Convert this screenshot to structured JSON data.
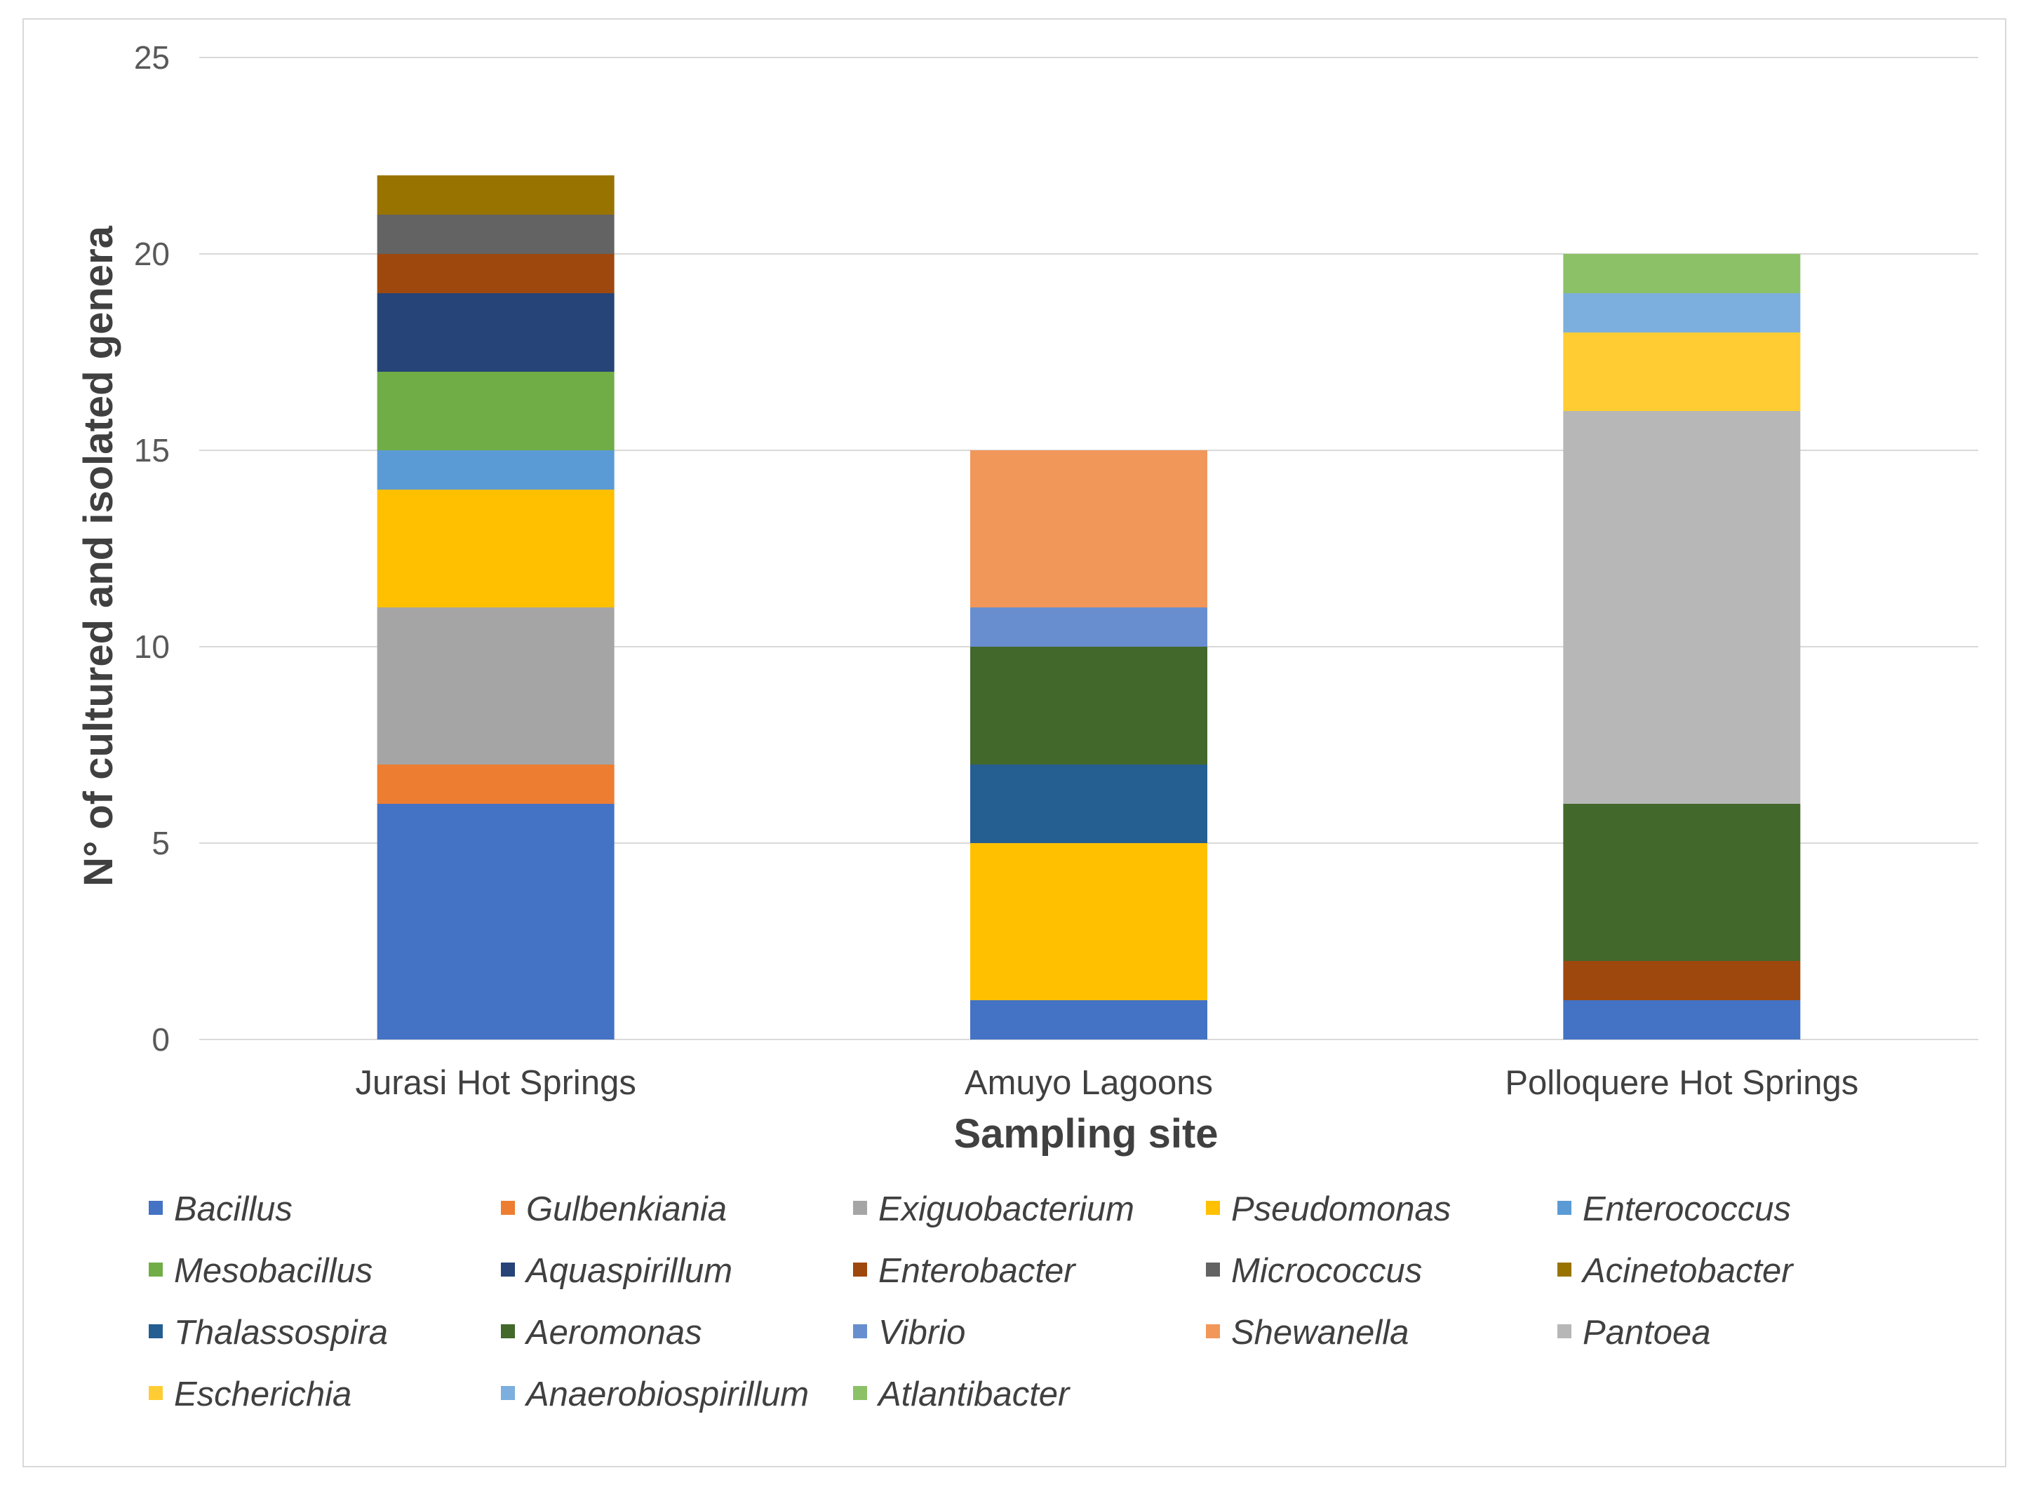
{
  "chart_data": {
    "type": "bar",
    "stacked": true,
    "title": "",
    "xlabel": "Sampling site",
    "ylabel": "N° of cultured and isolated genera",
    "ylim": [
      0,
      25
    ],
    "yticks": [
      0,
      5,
      10,
      15,
      20,
      25
    ],
    "grid": true,
    "legend_position": "bottom",
    "categories": [
      "Jurasi Hot Springs",
      "Amuyo Lagoons",
      "Polloquere Hot Springs"
    ],
    "series": [
      {
        "name": "Bacillus",
        "color": "#4472C4",
        "values": [
          6,
          1,
          1
        ]
      },
      {
        "name": "Gulbenkiania",
        "color": "#ED7D31",
        "values": [
          1,
          0,
          0
        ]
      },
      {
        "name": "Exiguobacterium",
        "color": "#A5A5A5",
        "values": [
          4,
          0,
          0
        ]
      },
      {
        "name": "Pseudomonas",
        "color": "#FFC000",
        "values": [
          3,
          4,
          0
        ]
      },
      {
        "name": "Enterococcus",
        "color": "#5B9BD5",
        "values": [
          1,
          0,
          0
        ]
      },
      {
        "name": "Mesobacillus",
        "color": "#70AD47",
        "values": [
          2,
          0,
          0
        ]
      },
      {
        "name": "Aquaspirillum",
        "color": "#264478",
        "values": [
          2,
          0,
          0
        ]
      },
      {
        "name": "Enterobacter",
        "color": "#9E480E",
        "values": [
          1,
          0,
          1
        ]
      },
      {
        "name": "Micrococcus",
        "color": "#636363",
        "values": [
          1,
          0,
          0
        ]
      },
      {
        "name": "Acinetobacter",
        "color": "#997300",
        "values": [
          1,
          0,
          0
        ]
      },
      {
        "name": "Thalassospira",
        "color": "#255E91",
        "values": [
          0,
          2,
          0
        ]
      },
      {
        "name": "Aeromonas",
        "color": "#43682B",
        "values": [
          0,
          3,
          4
        ]
      },
      {
        "name": "Vibrio",
        "color": "#698ED0",
        "values": [
          0,
          1,
          0
        ]
      },
      {
        "name": "Shewanella",
        "color": "#F1975A",
        "values": [
          0,
          4,
          0
        ]
      },
      {
        "name": "Pantoea",
        "color": "#B7B7B7",
        "values": [
          0,
          0,
          10
        ]
      },
      {
        "name": "Escherichia",
        "color": "#FFCD33",
        "values": [
          0,
          0,
          2
        ]
      },
      {
        "name": "Anaerobiospirillum",
        "color": "#7CAFDD",
        "values": [
          0,
          0,
          1
        ]
      },
      {
        "name": "Atlantibacter",
        "color": "#8CC168",
        "values": [
          0,
          0,
          1
        ]
      }
    ]
  }
}
